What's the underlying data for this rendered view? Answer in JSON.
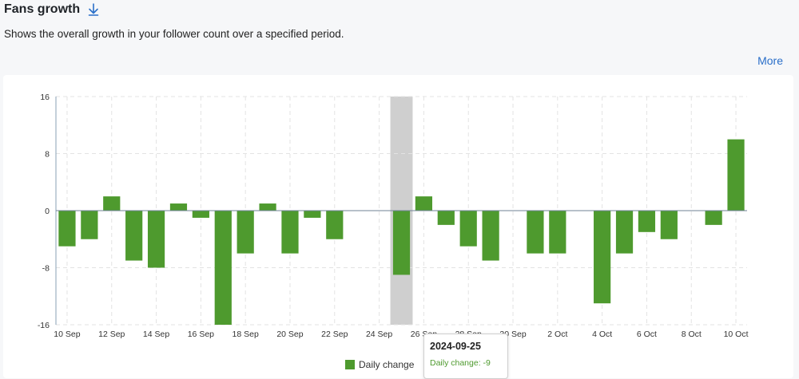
{
  "header": {
    "title": "Fans growth",
    "subtitle": "Shows the overall growth in your follower count over a specified period.",
    "more_label": "More"
  },
  "colors": {
    "bar": "#4e9a2e",
    "highlight": "#cfcfcf",
    "link": "#2a6fc9"
  },
  "tooltip": {
    "date": "2024-09-25",
    "label": "Daily change:",
    "value": "-9"
  },
  "chart_data": {
    "type": "bar",
    "ylim": [
      -16,
      16
    ],
    "y_ticks": [
      "16",
      "8",
      "0",
      "-8",
      "-16"
    ],
    "x_tick_labels": [
      "10 Sep",
      "12 Sep",
      "14 Sep",
      "16 Sep",
      "18 Sep",
      "20 Sep",
      "22 Sep",
      "24 Sep",
      "26 Sep",
      "28 Sep",
      "30 Sep",
      "2 Oct",
      "4 Oct",
      "6 Oct",
      "8 Oct",
      "10 Oct"
    ],
    "categories": [
      "2024-09-10",
      "2024-09-11",
      "2024-09-12",
      "2024-09-13",
      "2024-09-14",
      "2024-09-15",
      "2024-09-16",
      "2024-09-17",
      "2024-09-18",
      "2024-09-19",
      "2024-09-20",
      "2024-09-21",
      "2024-09-22",
      "2024-09-23",
      "2024-09-24",
      "2024-09-25",
      "2024-09-26",
      "2024-09-27",
      "2024-09-28",
      "2024-09-29",
      "2024-09-30",
      "2024-10-01",
      "2024-10-02",
      "2024-10-03",
      "2024-10-04",
      "2024-10-05",
      "2024-10-06",
      "2024-10-07",
      "2024-10-08",
      "2024-10-09",
      "2024-10-10"
    ],
    "series": [
      {
        "name": "Daily change",
        "values": [
          -5,
          -4,
          2,
          -7,
          -8,
          1,
          -1,
          -16,
          -6,
          1,
          -6,
          -1,
          -4,
          0,
          0,
          -9,
          2,
          -2,
          -5,
          -7,
          0,
          -6,
          -6,
          0,
          -13,
          -6,
          -3,
          -4,
          0,
          -2,
          10
        ]
      }
    ],
    "highlight_category": "2024-09-25",
    "grid": true,
    "legend": "bottom"
  }
}
